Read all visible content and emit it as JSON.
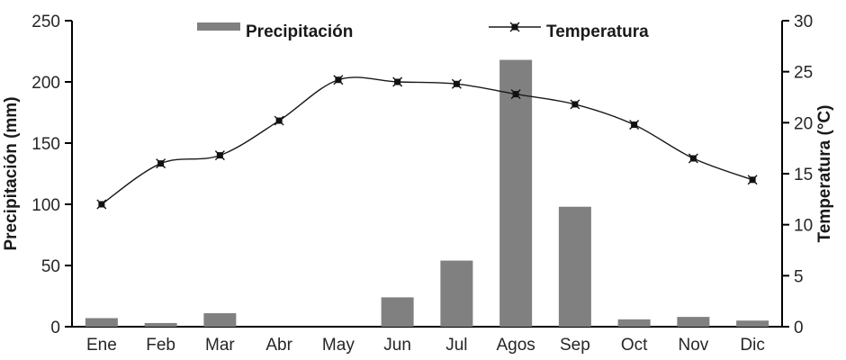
{
  "chart_data": {
    "type": "combo-bar-line",
    "categories": [
      "Ene",
      "Feb",
      "Mar",
      "Abr",
      "May",
      "Jun",
      "Jul",
      "Agos",
      "Sep",
      "Oct",
      "Nov",
      "Dic"
    ],
    "series": [
      {
        "name": "Precipitación",
        "type": "bar",
        "axis": "left",
        "values": [
          7,
          3,
          11,
          0,
          0,
          24,
          54,
          218,
          98,
          6,
          8,
          5
        ]
      },
      {
        "name": "Temperatura",
        "type": "line",
        "axis": "right",
        "values": [
          12,
          16,
          16.8,
          20.2,
          24.2,
          24,
          23.8,
          22.8,
          21.8,
          19.8,
          16.5,
          14.4
        ]
      }
    ],
    "y_left": {
      "label": "Precipitación (mm)",
      "min": 0,
      "max": 250,
      "ticks": [
        0,
        50,
        100,
        150,
        200,
        250
      ]
    },
    "y_right": {
      "label": "Temperatura (°C)",
      "min": 0,
      "max": 30,
      "ticks": [
        0,
        5,
        10,
        15,
        20,
        25,
        30
      ]
    },
    "xlabel": "",
    "title": "",
    "legend_position": "top",
    "grid": false,
    "colors": {
      "bar": "#808080",
      "line": "#1a1a1a",
      "marker": "#111111",
      "axis": "#000000",
      "text": "#262626"
    }
  }
}
